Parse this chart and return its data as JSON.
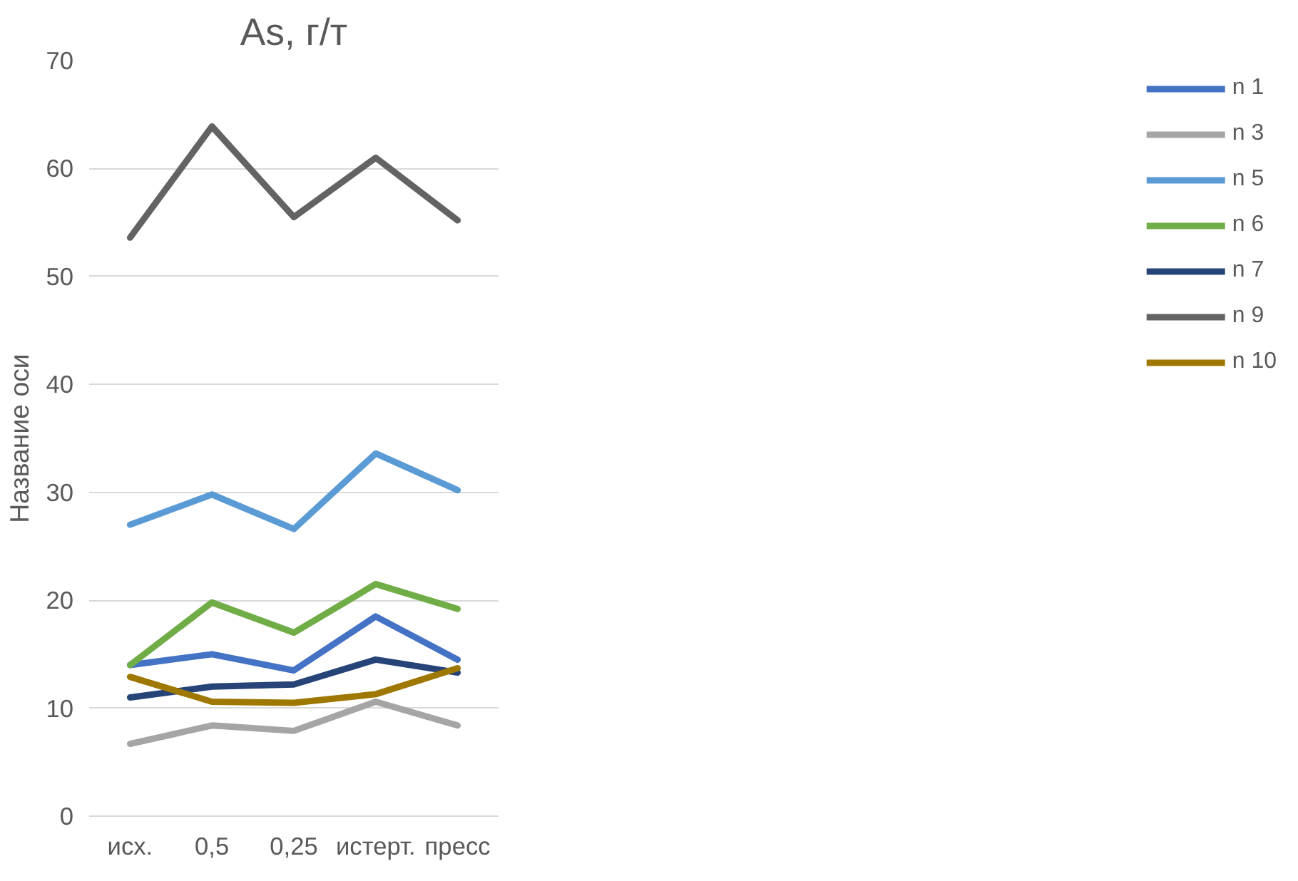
{
  "chart_data": {
    "type": "line",
    "title": "As, г/т",
    "ylabel": "Название оси",
    "categories": [
      "исх.",
      "0,5",
      "0,25",
      "истерт.",
      "пресс"
    ],
    "ylim": [
      0,
      70
    ],
    "yticks": [
      0,
      10,
      20,
      30,
      40,
      50,
      60,
      70
    ],
    "grid": "y",
    "legend": "right",
    "marker": "none",
    "line_style": "solid",
    "series": [
      {
        "name": "n 1",
        "color": "#4472c4",
        "values": [
          14,
          15,
          13.5,
          18.5,
          14.5
        ]
      },
      {
        "name": "n 3",
        "color": "#a5a5a5",
        "values": [
          6.7,
          8.4,
          7.9,
          10.6,
          8.4
        ]
      },
      {
        "name": "n 5",
        "color": "#5b9bd5",
        "values": [
          27,
          29.8,
          26.6,
          33.6,
          30.2
        ]
      },
      {
        "name": "n 6",
        "color": "#70ad47",
        "values": [
          14,
          19.8,
          17,
          21.5,
          19.2
        ]
      },
      {
        "name": "n 7",
        "color": "#264478",
        "values": [
          11,
          12,
          12.2,
          14.5,
          13.3
        ]
      },
      {
        "name": "n 9",
        "color": "#636363",
        "values": [
          53.6,
          63.9,
          55.5,
          61,
          55.2
        ]
      },
      {
        "name": "n 10",
        "color": "#9e7800",
        "values": [
          12.9,
          10.6,
          10.5,
          11.3,
          13.7
        ]
      }
    ]
  }
}
